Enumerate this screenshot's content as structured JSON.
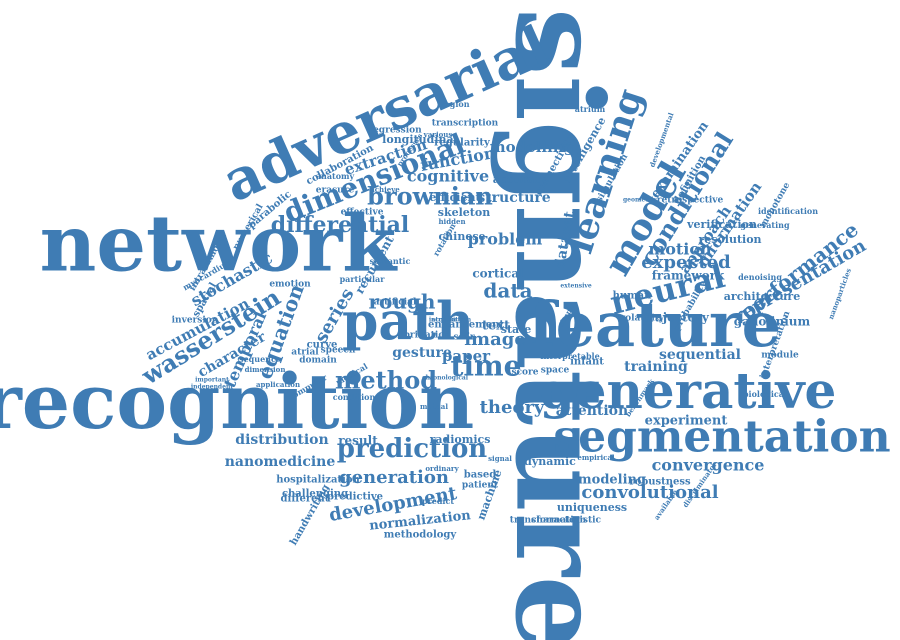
{
  "cloud": {
    "color": "#3f7cb4",
    "background": "#ffffff",
    "words": [
      {
        "text": "signature",
        "size": 120,
        "rotate": 90
      },
      {
        "text": "recognition",
        "size": 76,
        "rotate": 0
      },
      {
        "text": "network",
        "size": 78,
        "rotate": 0
      },
      {
        "text": "adversarial",
        "size": 56,
        "rotate": -24
      },
      {
        "text": "feature",
        "size": 62,
        "rotate": 0
      },
      {
        "text": "path",
        "size": 52,
        "rotate": 0
      },
      {
        "text": "generative",
        "size": 50,
        "rotate": 0
      },
      {
        "text": "segmentation",
        "size": 44,
        "rotate": 0
      },
      {
        "text": "learning",
        "size": 36,
        "rotate": -72
      },
      {
        "text": "model",
        "size": 36,
        "rotate": -60
      },
      {
        "text": "neural",
        "size": 32,
        "rotate": -14
      },
      {
        "text": "dimensional",
        "size": 28,
        "rotate": -22
      },
      {
        "text": "conditional",
        "size": 24,
        "rotate": -58
      },
      {
        "text": "prediction",
        "size": 26,
        "rotate": 0
      },
      {
        "text": "brownian",
        "size": 24,
        "rotate": 0
      },
      {
        "text": "differential",
        "size": 22,
        "rotate": 0
      },
      {
        "text": "wasserstein",
        "size": 24,
        "rotate": -32
      },
      {
        "text": "method",
        "size": 24,
        "rotate": 0
      },
      {
        "text": "time",
        "size": 28,
        "rotate": 0
      },
      {
        "text": "equation",
        "size": 20,
        "rotate": -70
      },
      {
        "text": "performance",
        "size": 20,
        "rotate": -38
      },
      {
        "text": "representation",
        "size": 18,
        "rotate": -30
      },
      {
        "text": "convolutional",
        "size": 18,
        "rotate": 0
      },
      {
        "text": "generation",
        "size": 18,
        "rotate": 0
      },
      {
        "text": "development",
        "size": 18,
        "rotate": -10
      },
      {
        "text": "convergence",
        "size": 16,
        "rotate": 0
      },
      {
        "text": "rough",
        "size": 20,
        "rotate": 0
      },
      {
        "text": "data",
        "size": 20,
        "rotate": 0
      },
      {
        "text": "expected",
        "size": 18,
        "rotate": 0
      },
      {
        "text": "motion",
        "size": 16,
        "rotate": 0
      },
      {
        "text": "image",
        "size": 18,
        "rotate": 0
      },
      {
        "text": "theory",
        "size": 18,
        "rotate": 0
      },
      {
        "text": "series",
        "size": 18,
        "rotate": -60
      },
      {
        "text": "temporal",
        "size": 16,
        "rotate": -66
      },
      {
        "text": "stochastic",
        "size": 16,
        "rotate": -30
      },
      {
        "text": "accumulation",
        "size": 15,
        "rotate": -28
      },
      {
        "text": "character",
        "size": 14,
        "rotate": -30
      },
      {
        "text": "cognitive",
        "size": 16,
        "rotate": 0
      },
      {
        "text": "function",
        "size": 16,
        "rotate": -10
      },
      {
        "text": "modelling",
        "size": 15,
        "rotate": 0
      },
      {
        "text": "extraction",
        "size": 15,
        "rotate": -18
      },
      {
        "text": "structure",
        "size": 14,
        "rotate": 0
      },
      {
        "text": "problem",
        "size": 16,
        "rotate": 0
      },
      {
        "text": "gesture",
        "size": 14,
        "rotate": 0
      },
      {
        "text": "paper",
        "size": 15,
        "rotate": 0
      },
      {
        "text": "distribution",
        "size": 14,
        "rotate": 0
      },
      {
        "text": "nanomedicine",
        "size": 14,
        "rotate": 0
      },
      {
        "text": "attention",
        "size": 14,
        "rotate": 0
      },
      {
        "text": "experiment",
        "size": 13,
        "rotate": 0
      },
      {
        "text": "sequential",
        "size": 14,
        "rotate": 0
      },
      {
        "text": "training",
        "size": 14,
        "rotate": 0
      },
      {
        "text": "approach",
        "size": 15,
        "rotate": -55
      },
      {
        "text": "information",
        "size": 15,
        "rotate": -55
      },
      {
        "text": "examination",
        "size": 13,
        "rotate": -55
      },
      {
        "text": "dataset",
        "size": 14,
        "rotate": -80
      },
      {
        "text": "modeling",
        "size": 13,
        "rotate": 0
      },
      {
        "text": "normalization",
        "size": 13,
        "rotate": -6
      },
      {
        "text": "uniqueness",
        "size": 11,
        "rotate": 0
      },
      {
        "text": "robustness",
        "size": 10,
        "rotate": 0
      },
      {
        "text": "gadolinium",
        "size": 12,
        "rotate": 0
      },
      {
        "text": "trajectory",
        "size": 12,
        "rotate": 0
      },
      {
        "text": "framework",
        "size": 12,
        "rotate": 0
      },
      {
        "text": "resolution",
        "size": 11,
        "rotate": 0
      },
      {
        "text": "verification",
        "size": 11,
        "rotate": 0
      },
      {
        "text": "architecture",
        "size": 11,
        "rotate": 0
      },
      {
        "text": "enhancement",
        "size": 10,
        "rotate": 0
      },
      {
        "text": "result",
        "size": 12,
        "rotate": 0
      },
      {
        "text": "radiomics",
        "size": 11,
        "rotate": 0
      },
      {
        "text": "dynamic",
        "size": 11,
        "rotate": 0
      },
      {
        "text": "machine",
        "size": 11,
        "rotate": -70
      },
      {
        "text": "predictive",
        "size": 10,
        "rotate": 0
      },
      {
        "text": "challenging",
        "size": 10,
        "rotate": 0
      },
      {
        "text": "hospitalization",
        "size": 10,
        "rotate": 0
      },
      {
        "text": "methodology",
        "size": 10,
        "rotate": 0
      },
      {
        "text": "transformation",
        "size": 9,
        "rotate": 0
      },
      {
        "text": "handwriting",
        "size": 10,
        "rotate": -60
      },
      {
        "text": "characteristic",
        "size": 9,
        "rotate": 0
      },
      {
        "text": "text",
        "size": 13,
        "rotate": 0
      },
      {
        "text": "state",
        "size": 11,
        "rotate": 0
      },
      {
        "text": "cortical",
        "size": 12,
        "rotate": 0
      },
      {
        "text": "chinese",
        "size": 11,
        "rotate": 0
      },
      {
        "text": "skeleton",
        "size": 11,
        "rotate": 0
      },
      {
        "text": "efficient",
        "size": 11,
        "rotate": 0
      },
      {
        "text": "accuracy",
        "size": 11,
        "rotate": 0
      },
      {
        "text": "effective",
        "size": 9,
        "rotate": 0
      },
      {
        "text": "emotion",
        "size": 9,
        "rotate": 0
      },
      {
        "text": "parabolic",
        "size": 10,
        "rotate": -40
      },
      {
        "text": "collaboration",
        "size": 10,
        "rotate": -28
      },
      {
        "text": "longitudinal",
        "size": 11,
        "rotate": 0
      },
      {
        "text": "regularity",
        "size": 10,
        "rotate": 0
      },
      {
        "text": "intelligence",
        "size": 11,
        "rotate": -60
      },
      {
        "text": "connectivity",
        "size": 10,
        "rotate": -60
      },
      {
        "text": "regression",
        "size": 9,
        "rotate": 0
      },
      {
        "text": "transcription",
        "size": 9,
        "rotate": 0
      },
      {
        "text": "retrospective",
        "size": 9,
        "rotate": 0
      },
      {
        "text": "definition",
        "size": 10,
        "rotate": -60
      },
      {
        "text": "simulation",
        "size": 9,
        "rotate": -60
      },
      {
        "text": "monotone",
        "size": 9,
        "rotate": -60
      },
      {
        "text": "identification",
        "size": 8,
        "rotate": 0
      },
      {
        "text": "generating",
        "size": 8,
        "rotate": 0
      },
      {
        "text": "denoising",
        "size": 8,
        "rotate": 0
      },
      {
        "text": "probability",
        "size": 9,
        "rotate": -60
      },
      {
        "text": "volatility",
        "size": 9,
        "rotate": 0
      },
      {
        "text": "human",
        "size": 10,
        "rotate": 0
      },
      {
        "text": "module",
        "size": 9,
        "rotate": 0
      },
      {
        "text": "interpretation",
        "size": 9,
        "rotate": -70
      },
      {
        "text": "biological",
        "size": 8,
        "rotate": 0
      },
      {
        "text": "interpretable",
        "size": 8,
        "rotate": 0
      },
      {
        "text": "space",
        "size": 9,
        "rotate": 0
      },
      {
        "text": "infant",
        "size": 10,
        "rotate": 0
      },
      {
        "text": "score",
        "size": 9,
        "rotate": 0
      },
      {
        "text": "based",
        "size": 10,
        "rotate": 0
      },
      {
        "text": "patient",
        "size": 9,
        "rotate": 0
      },
      {
        "text": "different",
        "size": 10,
        "rotate": 0
      },
      {
        "text": "fibrillation",
        "size": 9,
        "rotate": 0
      },
      {
        "text": "scar",
        "size": 9,
        "rotate": 0
      },
      {
        "text": "curve",
        "size": 10,
        "rotate": 0
      },
      {
        "text": "atrial",
        "size": 9,
        "rotate": 0
      },
      {
        "text": "domain",
        "size": 9,
        "rotate": 0
      },
      {
        "text": "predict",
        "size": 8,
        "rotate": 0
      },
      {
        "text": "speech",
        "size": 9,
        "rotate": 0
      },
      {
        "text": "particular",
        "size": 8,
        "rotate": 0
      },
      {
        "text": "recurrent",
        "size": 12,
        "rotate": -60
      },
      {
        "text": "numerical",
        "size": 9,
        "rotate": -60
      },
      {
        "text": "spatial",
        "size": 10,
        "rotate": -60
      },
      {
        "text": "inversion",
        "size": 9,
        "rotate": 0
      },
      {
        "text": "intratumoral",
        "size": 9,
        "rotate": -60
      },
      {
        "text": "myocardium",
        "size": 8,
        "rotate": -30
      },
      {
        "text": "application",
        "size": 7,
        "rotate": 0
      },
      {
        "text": "dimension",
        "size": 7,
        "rotate": 0
      },
      {
        "text": "sequence",
        "size": 8,
        "rotate": 0
      },
      {
        "text": "computer",
        "size": 8,
        "rotate": -30
      },
      {
        "text": "medical",
        "size": 8,
        "rotate": -30
      },
      {
        "text": "condition",
        "size": 8,
        "rotate": 0
      },
      {
        "text": "various",
        "size": 7,
        "rotate": 0
      },
      {
        "text": "achieve",
        "size": 7,
        "rotate": 0
      },
      {
        "text": "erasure",
        "size": 9,
        "rotate": 0
      },
      {
        "text": "anatomy",
        "size": 8,
        "rotate": 0
      },
      {
        "text": "artificial",
        "size": 9,
        "rotate": 0
      },
      {
        "text": "semantic",
        "size": 8,
        "rotate": 0
      },
      {
        "text": "rotation",
        "size": 8,
        "rotate": -60
      },
      {
        "text": "region",
        "size": 8,
        "rotate": 0
      },
      {
        "text": "atrium",
        "size": 8,
        "rotate": 0
      },
      {
        "text": "developmental",
        "size": 7,
        "rotate": -70
      },
      {
        "text": "nanoparticles",
        "size": 7,
        "rotate": -70
      },
      {
        "text": "benchmark",
        "size": 7,
        "rotate": -55
      },
      {
        "text": "discriminator",
        "size": 7,
        "rotate": -55
      },
      {
        "text": "empirical",
        "size": 7,
        "rotate": 0
      },
      {
        "text": "available",
        "size": 7,
        "rotate": -55
      },
      {
        "text": "processes",
        "size": 7,
        "rotate": -55
      },
      {
        "text": "chronological",
        "size": 6,
        "rotate": 0
      },
      {
        "text": "geometric",
        "size": 6,
        "rotate": 0
      },
      {
        "text": "hidden",
        "size": 7,
        "rotate": 0
      },
      {
        "text": "extensive",
        "size": 6,
        "rotate": 0
      },
      {
        "text": "simple",
        "size": 7,
        "rotate": -60
      },
      {
        "text": "mutual",
        "size": 7,
        "rotate": 0
      },
      {
        "text": "signal",
        "size": 7,
        "rotate": 0
      },
      {
        "text": "ordinary",
        "size": 7,
        "rotate": 0
      },
      {
        "text": "important",
        "size": 6,
        "rotate": 0
      },
      {
        "text": "independent",
        "size": 6,
        "rotate": 0
      },
      {
        "text": "introduction",
        "size": 6,
        "rotate": 0
      },
      {
        "text": "acquisition",
        "size": 6,
        "rotate": 0
      }
    ]
  }
}
